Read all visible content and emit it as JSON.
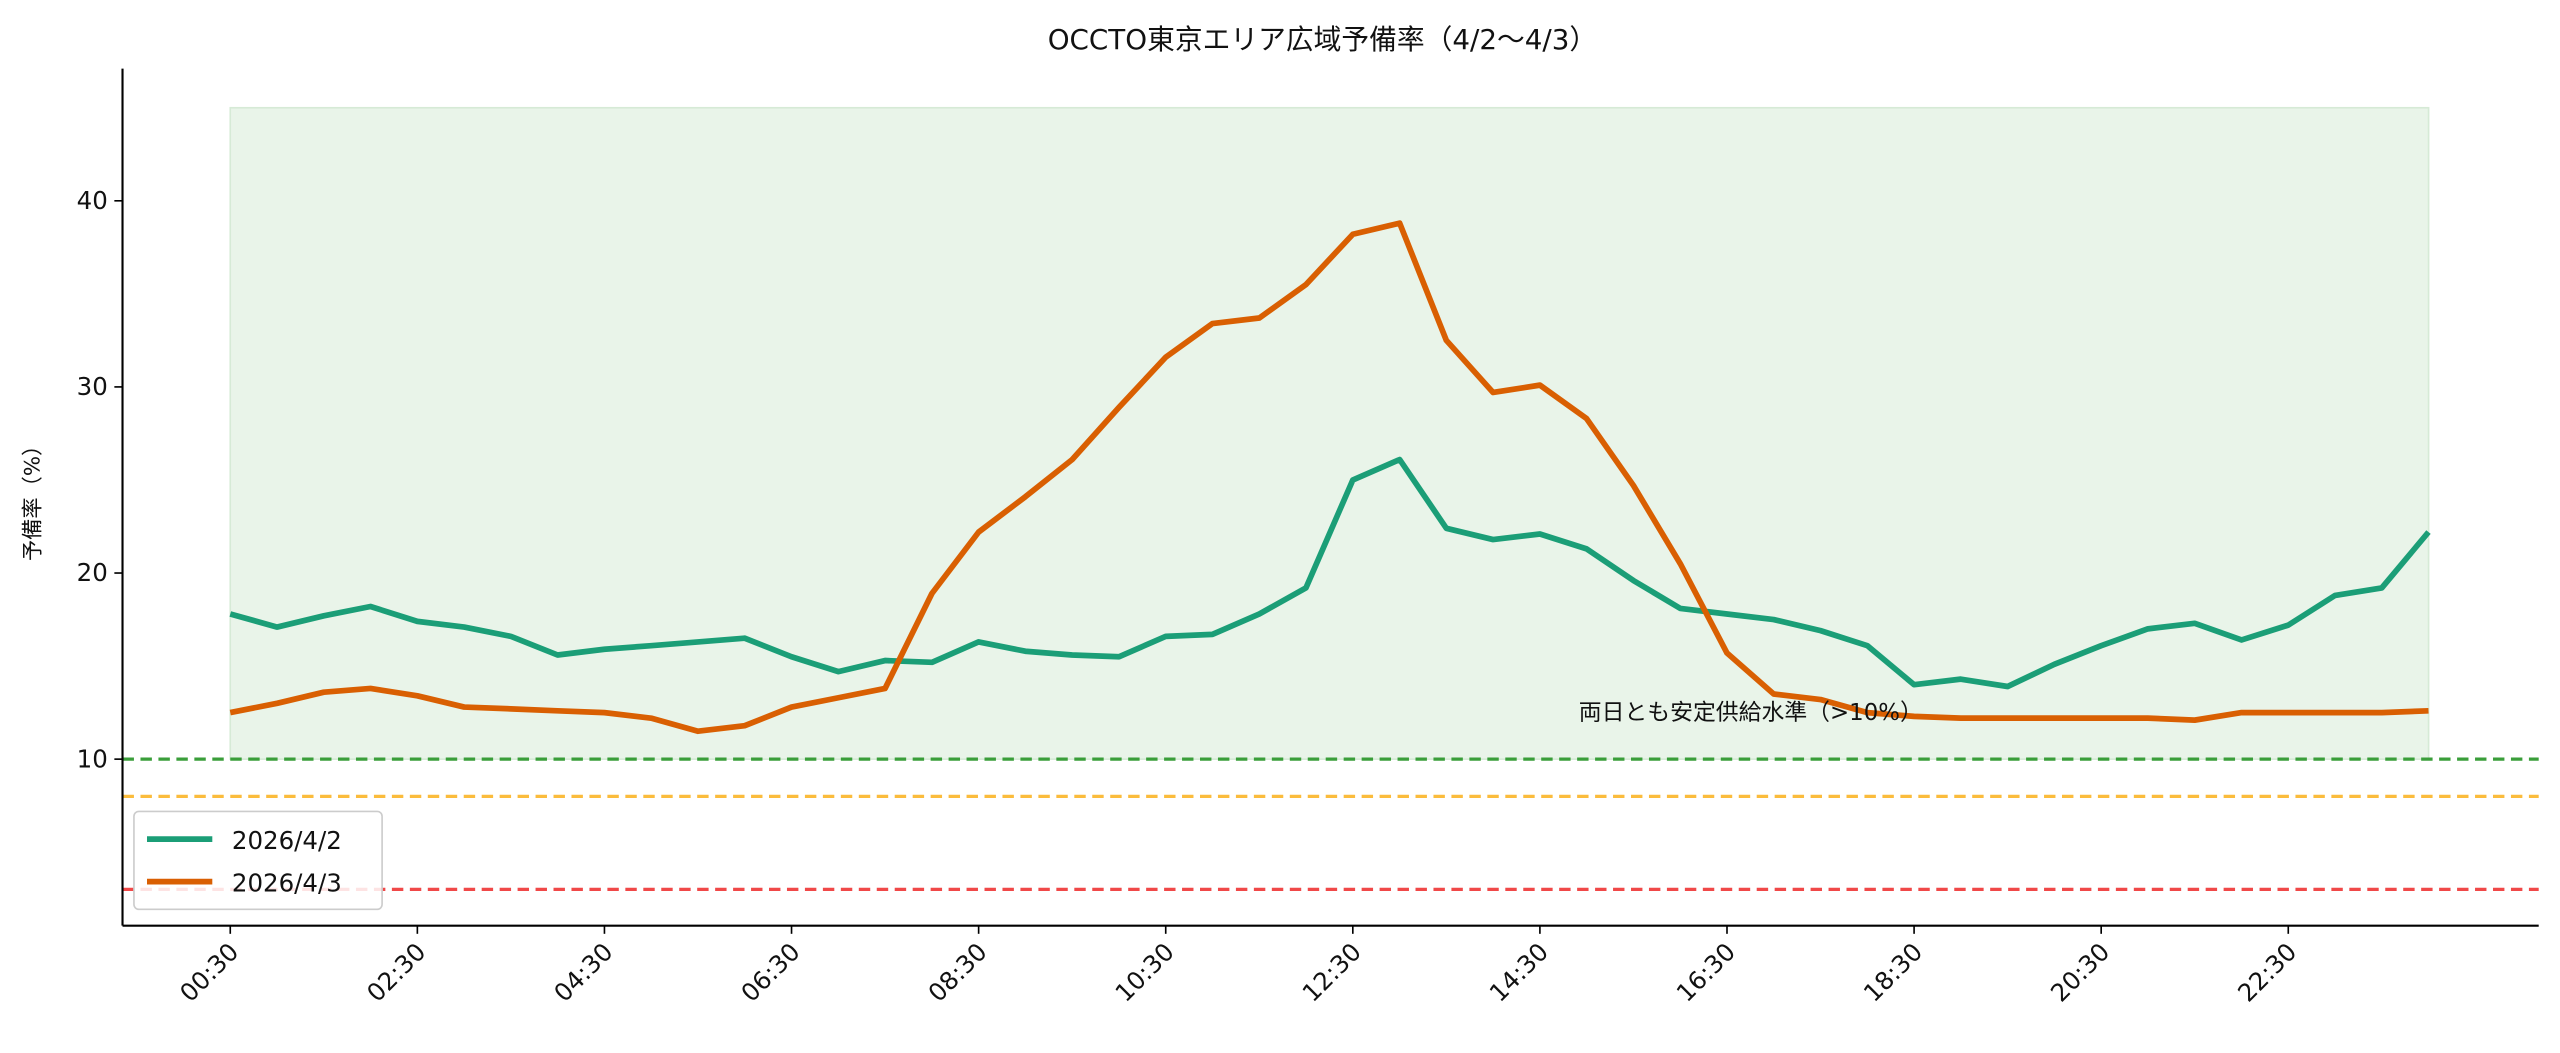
{
  "chart_data": {
    "type": "line",
    "title": "OCCTO東京エリア広域予備率（4/2〜4/3）",
    "xlabel": "",
    "ylabel": "予備率（%）",
    "ylim": [
      1.05,
      47.1
    ],
    "yticks": [
      10,
      20,
      30,
      40
    ],
    "xtick_labels": [
      "00:30",
      "02:30",
      "04:30",
      "06:30",
      "08:30",
      "10:30",
      "12:30",
      "14:30",
      "16:30",
      "18:30",
      "20:30",
      "22:30"
    ],
    "x": [
      "00:30",
      "01:00",
      "01:30",
      "02:00",
      "02:30",
      "03:00",
      "03:30",
      "04:00",
      "04:30",
      "05:00",
      "05:30",
      "06:00",
      "06:30",
      "07:00",
      "07:30",
      "08:00",
      "08:30",
      "09:00",
      "09:30",
      "10:00",
      "10:30",
      "11:00",
      "11:30",
      "12:00",
      "12:30",
      "13:00",
      "13:30",
      "14:00",
      "14:30",
      "15:00",
      "15:30",
      "16:00",
      "16:30",
      "17:00",
      "17:30",
      "18:00",
      "18:30",
      "19:00",
      "19:30",
      "20:00",
      "20:30",
      "21:00",
      "21:30",
      "22:00",
      "22:30",
      "23:00",
      "23:30",
      "24:00"
    ],
    "series": [
      {
        "name": "2026/4/2",
        "color": "#1b9e77",
        "values": [
          17.8,
          17.1,
          17.7,
          18.2,
          17.4,
          17.1,
          16.6,
          15.6,
          15.9,
          16.1,
          16.3,
          16.5,
          15.5,
          14.7,
          15.3,
          15.2,
          16.3,
          15.8,
          15.6,
          15.5,
          16.6,
          16.7,
          17.8,
          19.2,
          25.0,
          26.1,
          22.4,
          21.8,
          22.1,
          21.3,
          19.6,
          18.1,
          17.8,
          17.5,
          16.9,
          16.1,
          14.0,
          14.3,
          13.9,
          15.1,
          16.1,
          17.0,
          17.3,
          16.4,
          17.2,
          18.8,
          19.2,
          22.2
        ]
      },
      {
        "name": "2026/4/3",
        "color": "#d95f02",
        "values": [
          12.5,
          13.0,
          13.6,
          13.8,
          13.4,
          12.8,
          12.7,
          12.6,
          12.5,
          12.2,
          11.5,
          11.8,
          12.8,
          13.3,
          13.8,
          18.9,
          22.2,
          24.1,
          26.1,
          28.9,
          31.6,
          33.4,
          33.7,
          35.5,
          38.2,
          38.8,
          32.5,
          29.7,
          30.1,
          28.3,
          24.7,
          20.5,
          15.7,
          13.5,
          13.2,
          12.5,
          12.3,
          12.2,
          12.2,
          12.2,
          12.2,
          12.2,
          12.1,
          12.5,
          12.5,
          12.5,
          12.5,
          12.6
        ]
      }
    ],
    "shaded_band": {
      "y_from": 10,
      "y_to": 45,
      "color": "#e9f4e9"
    },
    "reference_lines": [
      {
        "y": 10,
        "color": "#3a9e3a",
        "style": "dashed"
      },
      {
        "y": 8,
        "color": "#fbbc3c",
        "style": "dashed"
      },
      {
        "y": 3,
        "color": "#f04848",
        "style": "dashed"
      }
    ],
    "annotation": {
      "text": "両日とも安定供給水準（>10%）",
      "color": "#1e8c1e"
    },
    "legend": {
      "placement": "lower-left",
      "entries": [
        "2026/4/2",
        "2026/4/3"
      ]
    },
    "grid": false
  }
}
